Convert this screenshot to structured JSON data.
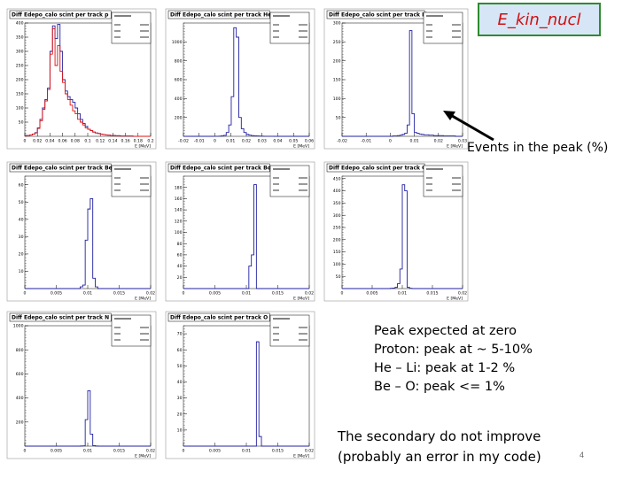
{
  "key_label": "E_kin_nucl",
  "events_label": "Events in the peak (%)",
  "peak_notes": [
    "Peak expected at zero",
    "Proton: peak at ~ 5-10%",
    "He – Li:  peak at 1-2 %",
    "Be – O:  peak  <= 1%"
  ],
  "secondary_notes": [
    "The secondary do not improve",
    "(probably an error in my code)"
  ],
  "slide_number": "4",
  "colors": {
    "hist_primary": "#2020a0",
    "hist_secondary": "#e01010",
    "key_border": "#2e8b2e",
    "key_fill": "#d6e6f7",
    "key_text": "#d01010"
  },
  "chart_data": [
    {
      "type": "bar",
      "title": "Diff Edepo_calo scint per track p",
      "xlabel": "E [MeV]",
      "ylabel": "",
      "xlim": [
        0,
        0.2
      ],
      "ylim": [
        0,
        400
      ],
      "xticks": [
        "0",
        "0.02",
        "0.04",
        "0.06",
        "0.08",
        "0.1",
        "0.12",
        "0.14",
        "0.16",
        "0.18",
        "0.2"
      ],
      "yticks": [
        50,
        100,
        150,
        200,
        250,
        300,
        350,
        400
      ],
      "bin_width": 0.004,
      "bin_start": 0,
      "series": [
        {
          "values": [
            3,
            3,
            5,
            8,
            13,
            30,
            60,
            100,
            130,
            170,
            300,
            390,
            345,
            395,
            300,
            200,
            160,
            140,
            130,
            120,
            100,
            80,
            60,
            45,
            35,
            25,
            20,
            15,
            12,
            10,
            8,
            6,
            5,
            4,
            3,
            3,
            2,
            2,
            1,
            1,
            1,
            1,
            1,
            0,
            0,
            0,
            0,
            0,
            0,
            0
          ]
        },
        {
          "values": [
            2,
            3,
            5,
            8,
            12,
            28,
            55,
            95,
            125,
            165,
            290,
            380,
            250,
            320,
            230,
            190,
            150,
            130,
            110,
            90,
            80,
            60,
            50,
            40,
            30,
            25,
            20,
            15,
            12,
            10,
            8,
            6,
            5,
            4,
            3,
            3,
            2,
            2,
            1,
            1,
            1,
            1,
            1,
            0,
            0,
            0,
            0,
            0,
            0,
            0
          ]
        }
      ]
    },
    {
      "type": "bar",
      "title": "Diff Edepo_calo scint per track He",
      "xlabel": "E [MeV]",
      "ylabel": "",
      "xlim": [
        -0.02,
        0.06
      ],
      "ylim": [
        0,
        1200
      ],
      "xticks": [
        "-0.02",
        "-0.01",
        "0",
        "0.01",
        "0.02",
        "0.03",
        "0.04",
        "0.05",
        "0.06"
      ],
      "yticks": [
        200,
        400,
        600,
        800,
        1000
      ],
      "bin_width": 0.0016,
      "bin_start": -0.02,
      "series": [
        {
          "values": [
            0,
            0,
            0,
            0,
            0,
            0,
            0,
            0,
            0,
            0,
            0,
            0,
            1,
            1,
            2,
            5,
            10,
            40,
            120,
            420,
            1150,
            1050,
            200,
            80,
            40,
            20,
            12,
            8,
            5,
            4,
            3,
            2,
            1,
            1,
            1,
            1,
            0,
            0,
            0,
            0,
            0,
            0,
            0,
            0,
            0,
            0,
            0,
            0,
            0,
            0
          ]
        }
      ]
    },
    {
      "type": "bar",
      "title": "Diff Edepo_calo scint per track Li",
      "xlabel": "E [MeV]",
      "ylabel": "",
      "xlim": [
        -0.02,
        0.03
      ],
      "ylim": [
        0,
        300
      ],
      "xticks": [
        "-0.02",
        "-0.01",
        "0",
        "0.01",
        "0.02",
        "0.03"
      ],
      "yticks": [
        50,
        100,
        150,
        200,
        250,
        300
      ],
      "bin_width": 0.001,
      "bin_start": -0.02,
      "series": [
        {
          "values": [
            0,
            0,
            0,
            0,
            0,
            0,
            0,
            0,
            0,
            0,
            0,
            0,
            0,
            0,
            0,
            0,
            0,
            0,
            0,
            0,
            0,
            1,
            1,
            2,
            3,
            5,
            8,
            30,
            280,
            60,
            10,
            8,
            6,
            5,
            4,
            4,
            3,
            3,
            2,
            2,
            2,
            2,
            1,
            1,
            1,
            1,
            1,
            0,
            0,
            0
          ]
        }
      ]
    },
    {
      "type": "bar",
      "title": "Diff Edepo_calo scint per track Be",
      "xlabel": "E [MeV]",
      "ylabel": "",
      "xlim": [
        0,
        0.02
      ],
      "ylim": [
        0,
        65
      ],
      "xticks": [
        "0",
        "0.005",
        "0.01",
        "0.015",
        "0.02"
      ],
      "yticks": [
        10,
        20,
        30,
        40,
        50,
        60
      ],
      "bin_width": 0.0004,
      "bin_start": 0,
      "series": [
        {
          "values": [
            0,
            0,
            0,
            0,
            0,
            0,
            0,
            0,
            0,
            0,
            0,
            0,
            0,
            0,
            0,
            0,
            0,
            0,
            0,
            0,
            0,
            0,
            1,
            2,
            28,
            46,
            52,
            6,
            1,
            0,
            0,
            0,
            0,
            0,
            0,
            0,
            0,
            0,
            0,
            0,
            0,
            0,
            0,
            0,
            0,
            0,
            0,
            0,
            0,
            0
          ]
        }
      ]
    },
    {
      "type": "bar",
      "title": "Diff Edepo_calo scint per track Bo",
      "xlabel": "E [MeV]",
      "ylabel": "",
      "xlim": [
        0,
        0.02
      ],
      "ylim": [
        0,
        200
      ],
      "xticks": [
        "0",
        "0.005",
        "0.01",
        "0.015",
        "0.02"
      ],
      "yticks": [
        20,
        40,
        60,
        80,
        100,
        120,
        140,
        160,
        180
      ],
      "bin_width": 0.0004,
      "bin_start": 0,
      "series": [
        {
          "values": [
            0,
            0,
            0,
            0,
            0,
            0,
            0,
            0,
            0,
            0,
            0,
            0,
            0,
            0,
            0,
            0,
            0,
            0,
            0,
            0,
            0,
            0,
            0,
            0,
            0,
            0,
            40,
            60,
            185,
            0,
            0,
            0,
            0,
            0,
            0,
            0,
            0,
            0,
            0,
            0,
            0,
            0,
            0,
            0,
            0,
            0,
            0,
            0,
            0,
            0
          ]
        }
      ]
    },
    {
      "type": "bar",
      "title": "Diff Edepo_calo scint per track C",
      "xlabel": "E [MeV]",
      "ylabel": "",
      "xlim": [
        0,
        0.02
      ],
      "ylim": [
        0,
        460
      ],
      "xticks": [
        "0",
        "0.005",
        "0.01",
        "0.015",
        "0.02"
      ],
      "yticks": [
        50,
        100,
        150,
        200,
        250,
        300,
        350,
        400,
        450
      ],
      "bin_width": 0.0004,
      "bin_start": 0,
      "series": [
        {
          "values": [
            0,
            0,
            0,
            0,
            0,
            0,
            0,
            0,
            0,
            0,
            0,
            0,
            0,
            0,
            0,
            0,
            0,
            0,
            0,
            0,
            1,
            2,
            5,
            20,
            80,
            425,
            400,
            5,
            1,
            0,
            0,
            0,
            0,
            0,
            0,
            0,
            0,
            0,
            0,
            0,
            0,
            0,
            0,
            0,
            0,
            0,
            0,
            0,
            0,
            0
          ]
        }
      ]
    },
    {
      "type": "bar",
      "title": "Diff Edepo_calo scint per track N",
      "xlabel": "E [MeV]",
      "ylabel": "",
      "xlim": [
        0,
        0.02
      ],
      "ylim": [
        0,
        1000
      ],
      "xticks": [
        "0",
        "0.005",
        "0.01",
        "0.015",
        "0.02"
      ],
      "yticks": [
        200,
        400,
        600,
        800,
        1000
      ],
      "bin_width": 0.0004,
      "bin_start": 0,
      "series": [
        {
          "values": [
            0,
            0,
            0,
            0,
            0,
            0,
            0,
            0,
            0,
            0,
            0,
            0,
            0,
            0,
            0,
            0,
            0,
            0,
            0,
            0,
            0,
            0,
            1,
            2,
            220,
            460,
            100,
            4,
            1,
            0,
            0,
            0,
            0,
            0,
            0,
            0,
            0,
            0,
            0,
            0,
            0,
            0,
            0,
            0,
            0,
            0,
            0,
            0,
            0,
            0
          ]
        }
      ]
    },
    {
      "type": "bar",
      "title": "Diff Edepo_calo scint per track O",
      "xlabel": "E [MeV]",
      "ylabel": "",
      "xlim": [
        0,
        0.02
      ],
      "ylim": [
        0,
        75
      ],
      "xticks": [
        "0",
        "0.005",
        "0.01",
        "0.015",
        "0.02"
      ],
      "yticks": [
        10,
        20,
        30,
        40,
        50,
        60,
        70
      ],
      "bin_width": 0.0004,
      "bin_start": 0,
      "series": [
        {
          "values": [
            0,
            0,
            0,
            0,
            0,
            0,
            0,
            0,
            0,
            0,
            0,
            0,
            0,
            0,
            0,
            0,
            0,
            0,
            0,
            0,
            0,
            0,
            0,
            0,
            0,
            0,
            0,
            0,
            0,
            65,
            6,
            0,
            0,
            0,
            0,
            0,
            0,
            0,
            0,
            0,
            0,
            0,
            0,
            0,
            0,
            0,
            0,
            0,
            0,
            0
          ]
        }
      ]
    }
  ]
}
